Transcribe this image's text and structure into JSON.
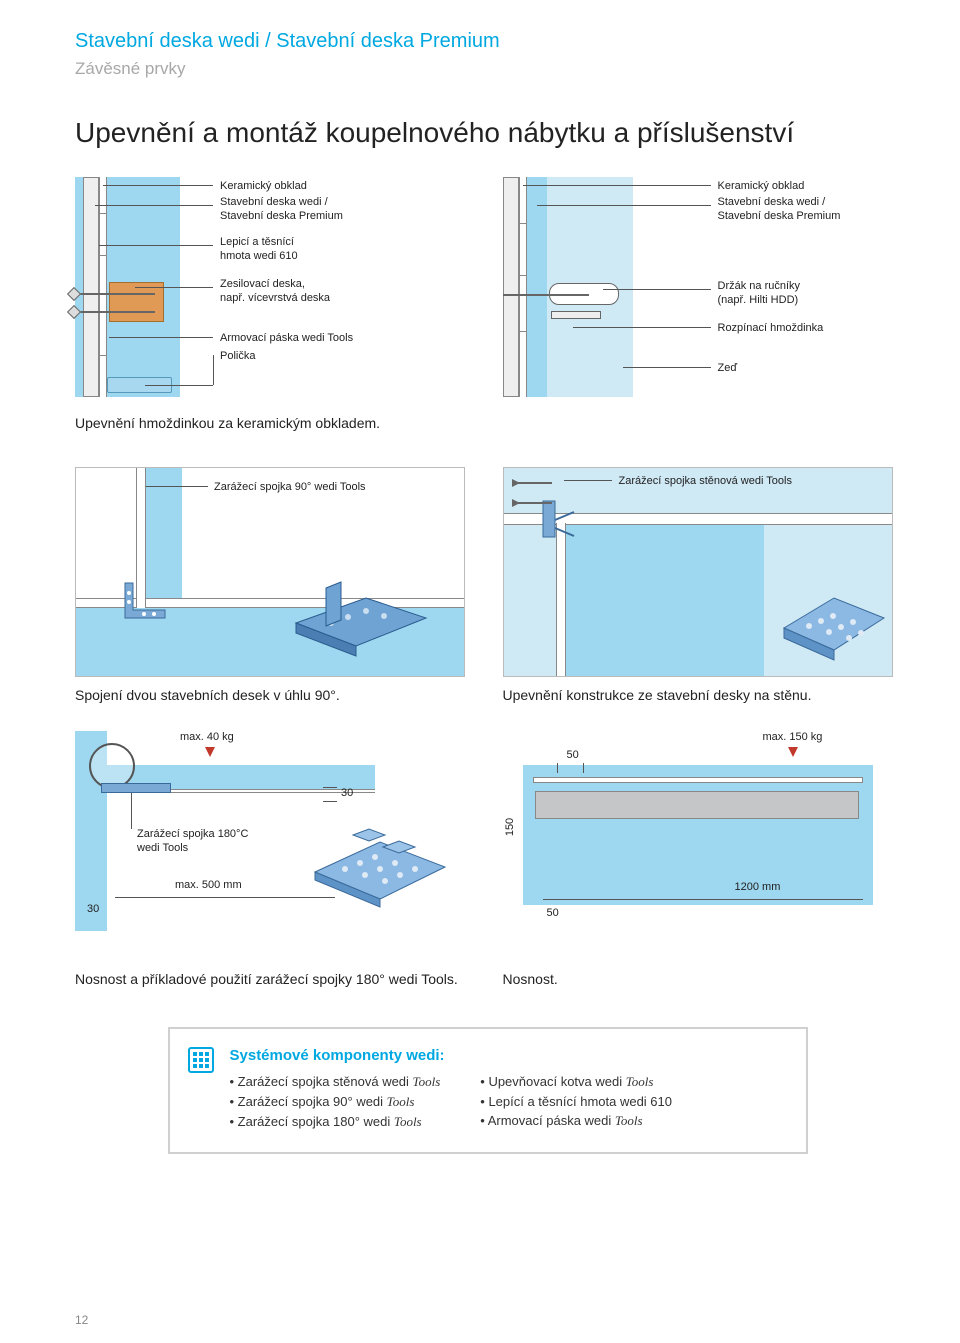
{
  "header": {
    "title": "Stavební deska wedi / Stavební deska Premium",
    "subtitle": "Závěsné prvky",
    "main_title": "Upevnění a montáž koupelnového nábytku a příslušenství"
  },
  "section1": {
    "left": {
      "labels": {
        "l1": "Keramický obklad",
        "l2a": "Stavební deska wedi /",
        "l2b": "Stavební deska Premium",
        "l3a": "Lepicí a těsnící",
        "l3b": "hmota wedi 610",
        "l4a": "Zesilovací deska,",
        "l4b": "např. vícevrstvá deska",
        "l5": "Armovací páska wedi Tools",
        "l6": "Polička"
      },
      "caption": "Upevnění hmoždinkou za keramickým obkladem."
    },
    "right": {
      "labels": {
        "r1": "Keramický obklad",
        "r2a": "Stavební deska wedi /",
        "r2b": "Stavební deska Premium",
        "r3a": "Držák na ručníky",
        "r3b": "(např. Hilti HDD)",
        "r4": "Rozpínací hmoždinka",
        "r5": "Zeď"
      }
    }
  },
  "section2": {
    "left": {
      "label": "Zarážecí spojka 90° wedi Tools",
      "caption": "Spojení dvou stavebních desek v úhlu 90°."
    },
    "right": {
      "label": "Zarážecí spojka stěnová wedi Tools",
      "caption": "Upevnění konstrukce ze stavební desky na stěnu."
    }
  },
  "section3": {
    "left": {
      "max_load": "max. 40 kg",
      "dim_top": "30",
      "dim_left": "30",
      "spojka": "Zarážecí spojka 180°C",
      "spojka2": "wedi Tools",
      "max_span": "max. 500 mm",
      "caption": "Nosnost a příkladové použití zarážecí spojky 180° wedi Tools."
    },
    "right": {
      "max_load": "max. 150 kg",
      "dim_top": "50",
      "dim_left": "150",
      "dim_bottom": "50",
      "span": "1200 mm",
      "caption": "Nosnost."
    }
  },
  "sysbox": {
    "title": "Systémové komponenty wedi:",
    "col1": [
      "Zarážecí spojka stěnová wedi Tools",
      "Zarážecí spojka 90° wedi Tools",
      "Zarážecí spojka 180° wedi Tools"
    ],
    "col2": [
      "Upevňovací kotva wedi Tools",
      "Lepící a těsnící hmota wedi 610",
      "Armovací páska wedi Tools"
    ]
  },
  "page": "12",
  "colors": {
    "brand": "#00a8e1",
    "wall": "#9ed7f0",
    "steel": "#5b9bd5",
    "wood": "#e09a55"
  }
}
